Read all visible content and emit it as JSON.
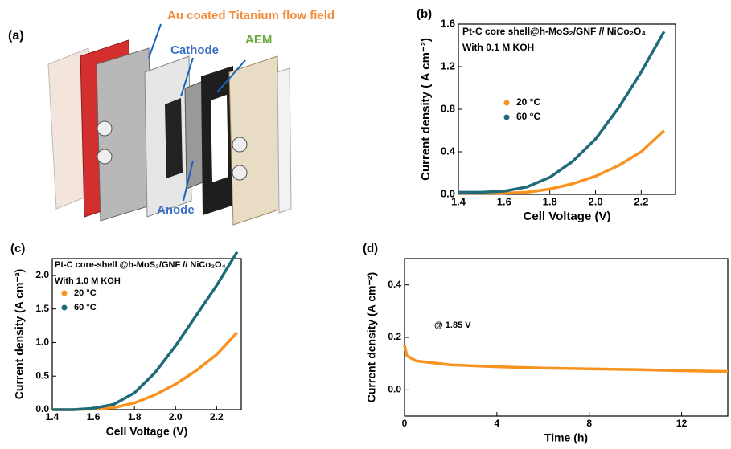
{
  "panel_a": {
    "label": "(a)",
    "annotations": [
      "Au coated Titanium flow field",
      "Cathode",
      "AEM",
      "Anode"
    ]
  },
  "chart_data": [
    {
      "type": "line",
      "panel": "(b)",
      "annotations": [
        "Pt-C core shell@h-MoS₂/GNF // NiCo₂O₄",
        "With 0.1 M KOH"
      ],
      "x_label": "Cell Voltage (V)",
      "y_label": "Current density ( A cm⁻²)",
      "x": [
        1.4,
        1.5,
        1.6,
        1.7,
        1.8,
        1.9,
        2.0,
        2.1,
        2.2,
        2.3
      ],
      "series": [
        {
          "name": "20 °C",
          "color": "#f7931e",
          "values": [
            0.01,
            0.01,
            0.01,
            0.02,
            0.05,
            0.1,
            0.17,
            0.27,
            0.4,
            0.6
          ]
        },
        {
          "name": "60 °C",
          "color": "#1f6b7a",
          "values": [
            0.02,
            0.02,
            0.03,
            0.07,
            0.16,
            0.31,
            0.52,
            0.81,
            1.15,
            1.53
          ]
        }
      ],
      "xlim": [
        1.4,
        2.35
      ],
      "xticks": [
        1.4,
        1.6,
        1.8,
        {
          "value": 2,
          "label": "2.0"
        },
        2.2
      ],
      "ylim": [
        0,
        1.6
      ],
      "yticks": [
        {
          "value": 0,
          "label": "0.0"
        },
        0.4,
        0.8,
        1.2,
        1.6
      ]
    },
    {
      "type": "line",
      "panel": "(c)",
      "annotations": [
        "Pt-C core-shell @h-MoS₂/GNF // NiCo₂O₄",
        "With 1.0 M KOH"
      ],
      "x_label": "Cell Voltage (V)",
      "y_label": "Current density (A cm⁻²)",
      "x": [
        1.4,
        1.5,
        1.6,
        1.7,
        1.8,
        1.9,
        2.0,
        2.1,
        2.2,
        2.3
      ],
      "series": [
        {
          "name": "20 °C",
          "color": "#f7931e",
          "values": [
            0,
            0,
            0.01,
            0.03,
            0.1,
            0.22,
            0.38,
            0.58,
            0.82,
            1.15
          ]
        },
        {
          "name": "60 °C",
          "color": "#1f6b7a",
          "values": [
            0,
            0,
            0.02,
            0.08,
            0.25,
            0.55,
            0.95,
            1.4,
            1.85,
            2.35
          ]
        }
      ],
      "xlim": [
        1.4,
        2.32
      ],
      "xticks": [
        1.4,
        1.6,
        1.8,
        {
          "value": 2,
          "label": "2.0"
        },
        2.2
      ],
      "ylim": [
        0,
        2.25
      ],
      "yticks": [
        {
          "value": 0,
          "label": "0.0"
        },
        0.5,
        {
          "value": 1,
          "label": "1.0"
        },
        1.5,
        {
          "value": 2,
          "label": "2.0"
        }
      ]
    },
    {
      "type": "line",
      "panel": "(d)",
      "annotations": [
        "@ 1.85 V"
      ],
      "x_label": "Time (h)",
      "y_label": "Current density (A cm⁻²)",
      "x": [
        0,
        0.1,
        0.5,
        1,
        2,
        4,
        6,
        8,
        10,
        12,
        14
      ],
      "series": [
        {
          "color": "#f7931e",
          "values": [
            0.17,
            0.13,
            0.11,
            0.105,
            0.095,
            0.088,
            0.083,
            0.08,
            0.077,
            0.073,
            0.07
          ]
        }
      ],
      "xlim": [
        0,
        14
      ],
      "xticks": [
        0,
        4,
        8,
        12
      ],
      "ylim": [
        -0.1,
        0.5
      ],
      "yticks": [
        {
          "value": 0,
          "label": "0.0"
        },
        0.2,
        0.4
      ]
    }
  ]
}
